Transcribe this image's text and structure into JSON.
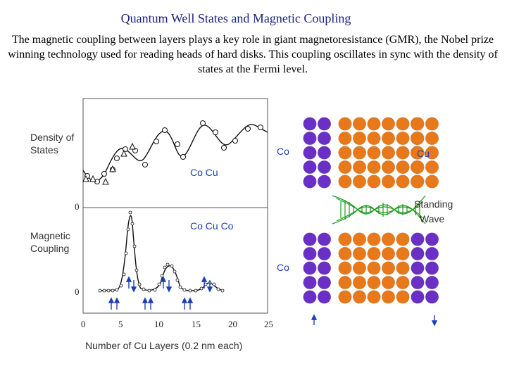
{
  "header": {
    "title": "Quantum Well States and Magnetic Coupling",
    "intro": "The magnetic coupling between layers plays a key role in giant magnetoresistance (GMR), the Nobel prize winning technology used for reading heads of hard disks.    This coupling oscillates in sync with the density of states at the Fermi level."
  },
  "plot": {
    "dos_label": "Density of States",
    "coupling_label": "Magnetic Coupling",
    "zero_label_top": "0",
    "zero_label_bottom": "0",
    "x_ticks": [
      "0",
      "5",
      "10",
      "15",
      "20",
      "25"
    ],
    "x_label": "Number of Cu Layers  (0.2 nm each)",
    "inset_top": "Co Cu",
    "inset_bottom": "Co Cu Co"
  },
  "diagram": {
    "co_top": "Co",
    "cu_top": "Cu",
    "co_bottom": "Co",
    "wave_label_1": "Standing",
    "wave_label_2": "Wave",
    "colors": {
      "co": "#6a2fc4",
      "cu": "#e8791a",
      "wave": "#1a9a1a",
      "arrow": "#1a3fb8"
    }
  },
  "chart_data": {
    "type": "line",
    "xlabel": "Number of Cu Layers  (0.2 nm each)",
    "xlim": [
      0,
      25
    ],
    "series": [
      {
        "values": [
          [
            0,
            0.28
          ],
          [
            2,
            0.18
          ],
          [
            4,
            0.48
          ],
          [
            6,
            0.74
          ],
          [
            8,
            0.5
          ],
          [
            10,
            0.84
          ],
          [
            12,
            0.62
          ],
          [
            14,
            0.9
          ],
          [
            16,
            0.74
          ],
          [
            18,
            0.9
          ],
          [
            20,
            0.86
          ],
          [
            23,
            0.74
          ]
        ]
      },
      {
        "values": [
          [
            2,
            0.0
          ],
          [
            4,
            0.0
          ],
          [
            5,
            0.35
          ],
          [
            6,
            0.98
          ],
          [
            7,
            0.3
          ],
          [
            8,
            0.05
          ],
          [
            10,
            0.05
          ],
          [
            11,
            0.35
          ],
          [
            12,
            0.36
          ],
          [
            13,
            0.15
          ],
          [
            14,
            0.0
          ],
          [
            16,
            0.02
          ],
          [
            17,
            0.1
          ],
          [
            18,
            0.03
          ],
          [
            20,
            0.0
          ]
        ]
      }
    ]
  }
}
